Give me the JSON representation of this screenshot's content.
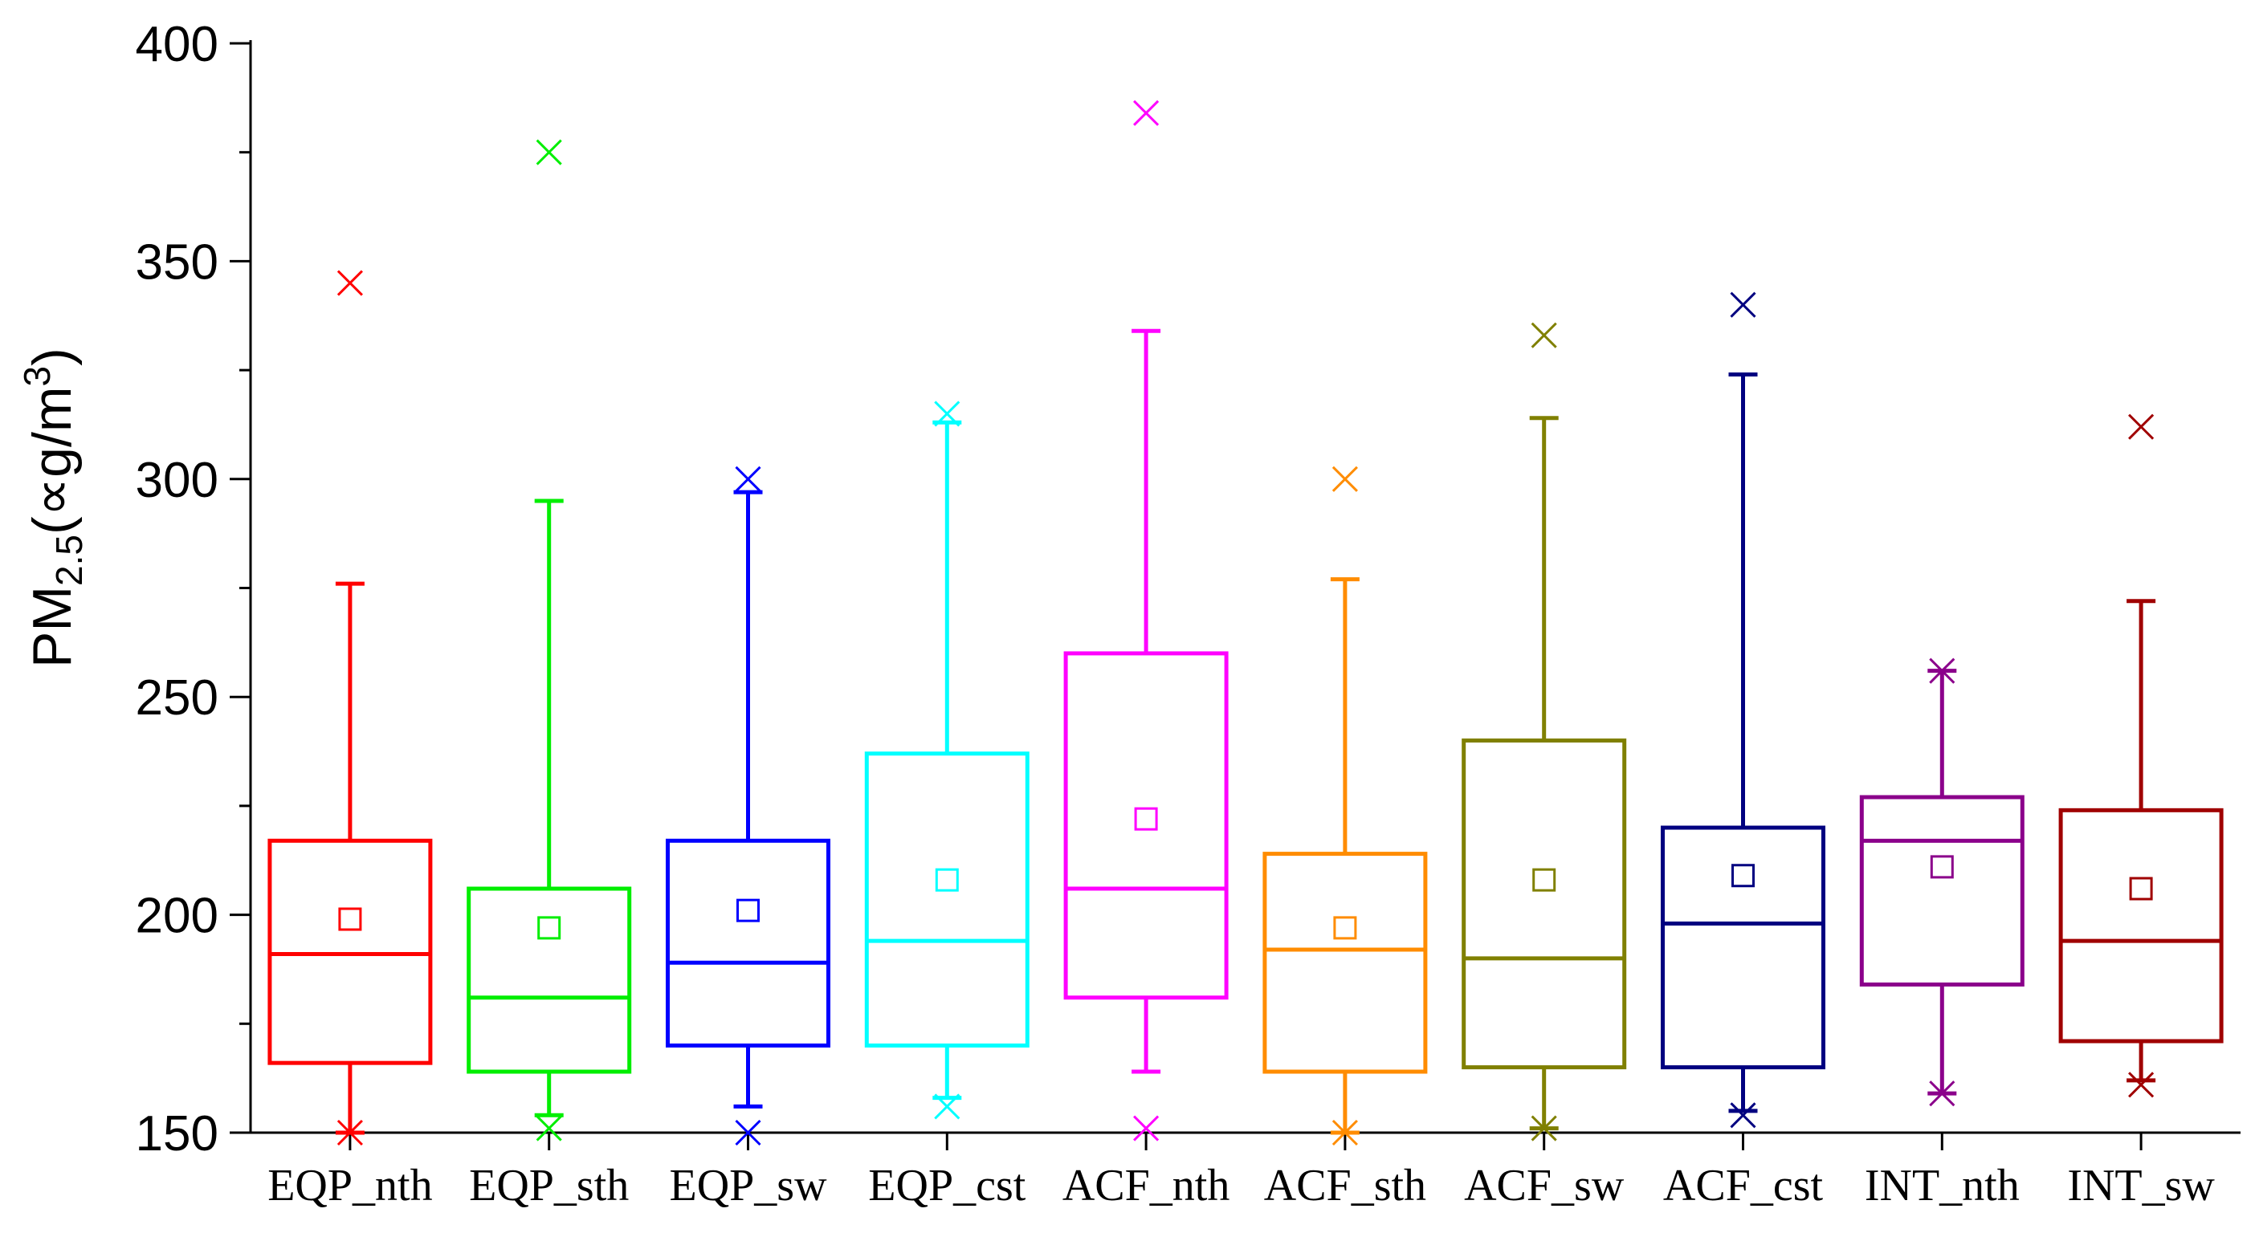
{
  "chart_data": {
    "type": "box",
    "ylabel": {
      "base": "PM",
      "subscript": "2.5",
      "unit_open": "(",
      "unit_symbol": "∝",
      "unit_text": "g/m",
      "unit_superscript": "3",
      "unit_close": ")"
    },
    "ylim": [
      150,
      400
    ],
    "y_ticks": [
      150,
      200,
      250,
      300,
      350,
      400
    ],
    "y_tick_labels": [
      "150",
      "200",
      "250",
      "300",
      "350",
      "400"
    ],
    "grid": false,
    "legend": "none",
    "categories": [
      "EQP_nth",
      "EQP_sth",
      "EQP_sw",
      "EQP_cst",
      "ACF_nth",
      "ACF_sth",
      "ACF_sw",
      "ACF_cst",
      "INT_nth",
      "INT_sw"
    ],
    "series": [
      {
        "category": "EQP_nth",
        "color": "#ff0000",
        "whisker_low": 150,
        "q1": 166,
        "median": 191,
        "q3": 217,
        "whisker_high": 276,
        "mean": 199,
        "max": 345,
        "min": 150
      },
      {
        "category": "EQP_sth",
        "color": "#00ee00",
        "whisker_low": 154,
        "q1": 164,
        "median": 181,
        "q3": 206,
        "whisker_high": 295,
        "mean": 197,
        "max": 375,
        "min": 151
      },
      {
        "category": "EQP_sw",
        "color": "#0000ff",
        "whisker_low": 156,
        "q1": 170,
        "median": 189,
        "q3": 217,
        "whisker_high": 297,
        "mean": 201,
        "max": 300,
        "min": 150
      },
      {
        "category": "EQP_cst",
        "color": "#00ffff",
        "whisker_low": 158,
        "q1": 170,
        "median": 194,
        "q3": 237,
        "whisker_high": 313,
        "mean": 208,
        "max": 315,
        "min": 156
      },
      {
        "category": "ACF_nth",
        "color": "#ff00ff",
        "whisker_low": 164,
        "q1": 181,
        "median": 206,
        "q3": 260,
        "whisker_high": 334,
        "mean": 222,
        "max": 384,
        "min": 151
      },
      {
        "category": "ACF_sth",
        "color": "#ff8c00",
        "whisker_low": 150,
        "q1": 164,
        "median": 192,
        "q3": 214,
        "whisker_high": 277,
        "mean": 197,
        "max": 300,
        "min": 150
      },
      {
        "category": "ACF_sw",
        "color": "#808000",
        "whisker_low": 151,
        "q1": 165,
        "median": 190,
        "q3": 240,
        "whisker_high": 314,
        "mean": 208,
        "max": 333,
        "min": 151
      },
      {
        "category": "ACF_cst",
        "color": "#000080",
        "whisker_low": 155,
        "q1": 165,
        "median": 198,
        "q3": 220,
        "whisker_high": 324,
        "mean": 209,
        "max": 340,
        "min": 154
      },
      {
        "category": "INT_nth",
        "color": "#8b008b",
        "whisker_low": 159,
        "q1": 184,
        "median": 217,
        "q3": 227,
        "whisker_high": 256,
        "mean": 211,
        "max": 256,
        "min": 159
      },
      {
        "category": "INT_sw",
        "color": "#a00000",
        "whisker_low": 162,
        "q1": 171,
        "median": 194,
        "q3": 224,
        "whisker_high": 272,
        "mean": 206,
        "max": 312,
        "min": 161
      }
    ]
  }
}
